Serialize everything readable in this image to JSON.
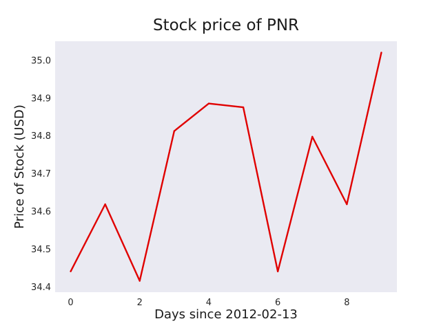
{
  "chart_data": {
    "type": "line",
    "title": "Stock price of PNR",
    "xlabel": "Days since 2012-02-13",
    "ylabel": "Price of Stock (USD)",
    "x": [
      0,
      1,
      2,
      3,
      4,
      5,
      6,
      7,
      8,
      9
    ],
    "series": [
      {
        "values": [
          34.44,
          34.618,
          34.415,
          34.812,
          34.885,
          34.875,
          34.44,
          34.797,
          34.618,
          35.02
        ],
        "color": "#e00000"
      }
    ],
    "xlim": [
      -0.45,
      9.45
    ],
    "ylim": [
      34.385,
      35.05
    ],
    "xticks": [
      0,
      2,
      4,
      6,
      8
    ],
    "yticks": [
      34.4,
      34.5,
      34.6,
      34.7,
      34.8,
      34.9,
      35.0
    ],
    "xtick_labels": [
      "0",
      "2",
      "4",
      "6",
      "8"
    ],
    "ytick_labels": [
      "34.4",
      "34.5",
      "34.6",
      "34.7",
      "34.8",
      "34.9",
      "35.0"
    ],
    "grid": false,
    "plot_background": "#eaeaf2"
  }
}
